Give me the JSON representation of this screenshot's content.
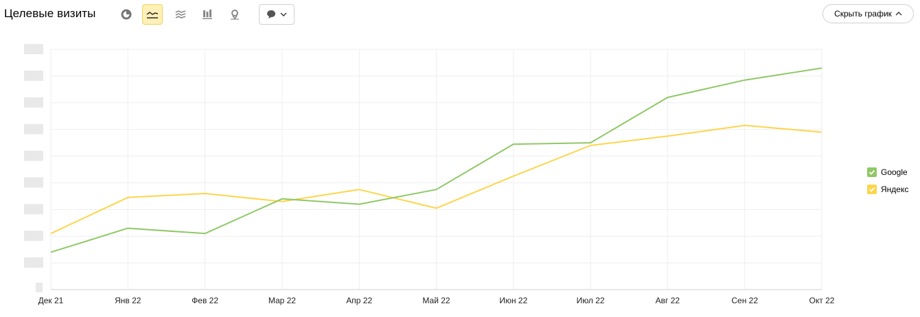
{
  "header": {
    "title": "Целевые визиты",
    "hide_chart_label": "Скрыть график"
  },
  "toolbar": {
    "icons": [
      "pie-chart-icon",
      "line-chart-icon",
      "area-chart-icon",
      "column-chart-icon",
      "map-icon"
    ],
    "active": "line-chart-icon",
    "annotation_dropdown_icon": "comment-icon"
  },
  "colors": {
    "google": "#8fc866",
    "yandex": "#fdd54a",
    "grid": "#eeeeee",
    "active_bg": "#fff0b8"
  },
  "chart_data": {
    "type": "line",
    "categories": [
      "Дек 21",
      "Янв 22",
      "Фев 22",
      "Мар 22",
      "Апр 22",
      "Май 22",
      "Июн 22",
      "Июл 22",
      "Авг 22",
      "Сен 22",
      "Окт 22"
    ],
    "series": [
      {
        "name": "Google",
        "values": [
          1.4,
          2.3,
          2.1,
          3.4,
          3.2,
          3.75,
          5.45,
          5.5,
          7.2,
          7.85,
          8.3
        ]
      },
      {
        "name": "Яндекс",
        "values": [
          2.1,
          3.45,
          3.6,
          3.3,
          3.75,
          3.05,
          4.25,
          5.4,
          5.75,
          6.15,
          5.9
        ]
      }
    ],
    "ylim": [
      0,
      9
    ],
    "y_tick_labels_obscured": true,
    "grid": true,
    "legend": "right"
  }
}
